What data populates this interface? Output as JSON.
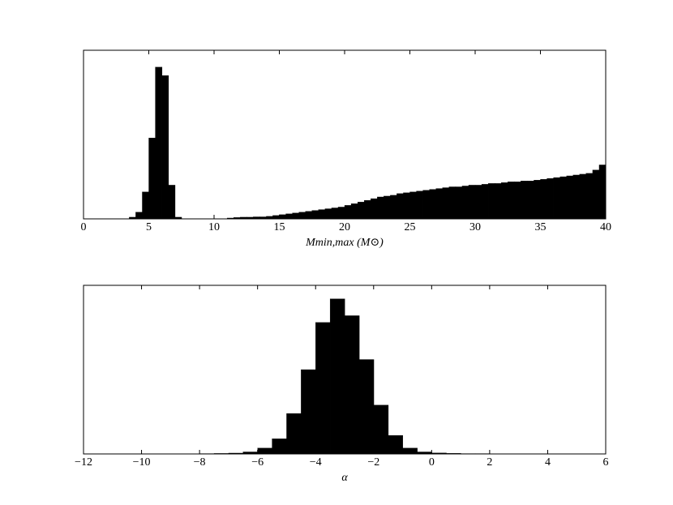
{
  "chart_data": [
    {
      "type": "histogram",
      "color": "#000000",
      "xlabel": "Mmin,max (M⊙)",
      "bins": [
        0,
        0.5,
        1,
        1.5,
        2,
        2.5,
        3,
        3.5,
        4,
        4.5,
        5,
        5.5,
        6,
        6.5,
        7,
        7.5,
        8,
        8.5,
        9,
        9.5,
        10,
        10.5,
        11,
        11.5,
        12,
        12.5,
        13,
        13.5,
        14,
        14.5,
        15,
        15.5,
        16,
        16.5,
        17,
        17.5,
        18,
        18.5,
        19,
        19.5,
        20,
        20.5,
        21,
        21.5,
        22,
        22.5,
        23,
        23.5,
        24,
        24.5,
        25,
        25.5,
        26,
        26.5,
        27,
        27.5,
        28,
        28.5,
        29,
        29.5,
        30,
        30.5,
        31,
        31.5,
        32,
        32.5,
        33,
        33.5,
        34,
        34.5,
        35,
        35.5,
        36,
        36.5,
        37,
        37.5,
        38,
        38.5,
        39,
        39.5,
        40
      ],
      "values": [
        0,
        0,
        0,
        0,
        0,
        0,
        0,
        0.01,
        0.04,
        0.16,
        0.48,
        0.9,
        0.85,
        0.2,
        0.01,
        0,
        0,
        0,
        0,
        0,
        0,
        0,
        0.005,
        0.008,
        0.01,
        0.01,
        0.012,
        0.012,
        0.015,
        0.02,
        0.025,
        0.03,
        0.035,
        0.04,
        0.045,
        0.05,
        0.055,
        0.06,
        0.065,
        0.07,
        0.08,
        0.09,
        0.1,
        0.11,
        0.12,
        0.13,
        0.135,
        0.14,
        0.15,
        0.155,
        0.16,
        0.165,
        0.17,
        0.175,
        0.18,
        0.185,
        0.19,
        0.19,
        0.195,
        0.2,
        0.2,
        0.205,
        0.21,
        0.21,
        0.215,
        0.22,
        0.22,
        0.225,
        0.225,
        0.23,
        0.235,
        0.24,
        0.245,
        0.25,
        0.255,
        0.26,
        0.265,
        0.27,
        0.29,
        0.32
      ],
      "xlim": [
        0,
        40
      ],
      "xticks": [
        0,
        5,
        10,
        15,
        20,
        25,
        30,
        35,
        40
      ],
      "ylim": [
        0,
        1
      ]
    },
    {
      "type": "histogram",
      "color": "#000000",
      "xlabel": "α",
      "bins": [
        -12,
        -11.5,
        -11,
        -10.5,
        -10,
        -9.5,
        -9,
        -8.5,
        -8,
        -7.5,
        -7,
        -6.5,
        -6,
        -5.5,
        -5,
        -4.5,
        -4,
        -3.5,
        -3,
        -2.5,
        -2,
        -1.5,
        -1,
        -0.5,
        0,
        0.5,
        1,
        1.5,
        2,
        2.5,
        3,
        3.5,
        4,
        4.5,
        5,
        5.5,
        6
      ],
      "values": [
        0.001,
        0.001,
        0.001,
        0.001,
        0.001,
        0.001,
        0.001,
        0.001,
        0.002,
        0.003,
        0.005,
        0.012,
        0.035,
        0.09,
        0.24,
        0.5,
        0.78,
        0.92,
        0.82,
        0.56,
        0.29,
        0.11,
        0.035,
        0.012,
        0.006,
        0.004,
        0.002,
        0.002,
        0.001,
        0.001,
        0.001,
        0.001,
        0.001,
        0.001,
        0.001,
        0.001
      ],
      "xlim": [
        -12,
        6
      ],
      "xticks": [
        {
          "value": -12,
          "label": "−12"
        },
        {
          "value": -10,
          "label": "−10"
        },
        {
          "value": -8,
          "label": "−8"
        },
        {
          "value": -6,
          "label": "−6"
        },
        {
          "value": -4,
          "label": "−4"
        },
        {
          "value": -2,
          "label": "−2"
        },
        0,
        2,
        4,
        6
      ],
      "ylim": [
        0,
        1
      ]
    }
  ]
}
